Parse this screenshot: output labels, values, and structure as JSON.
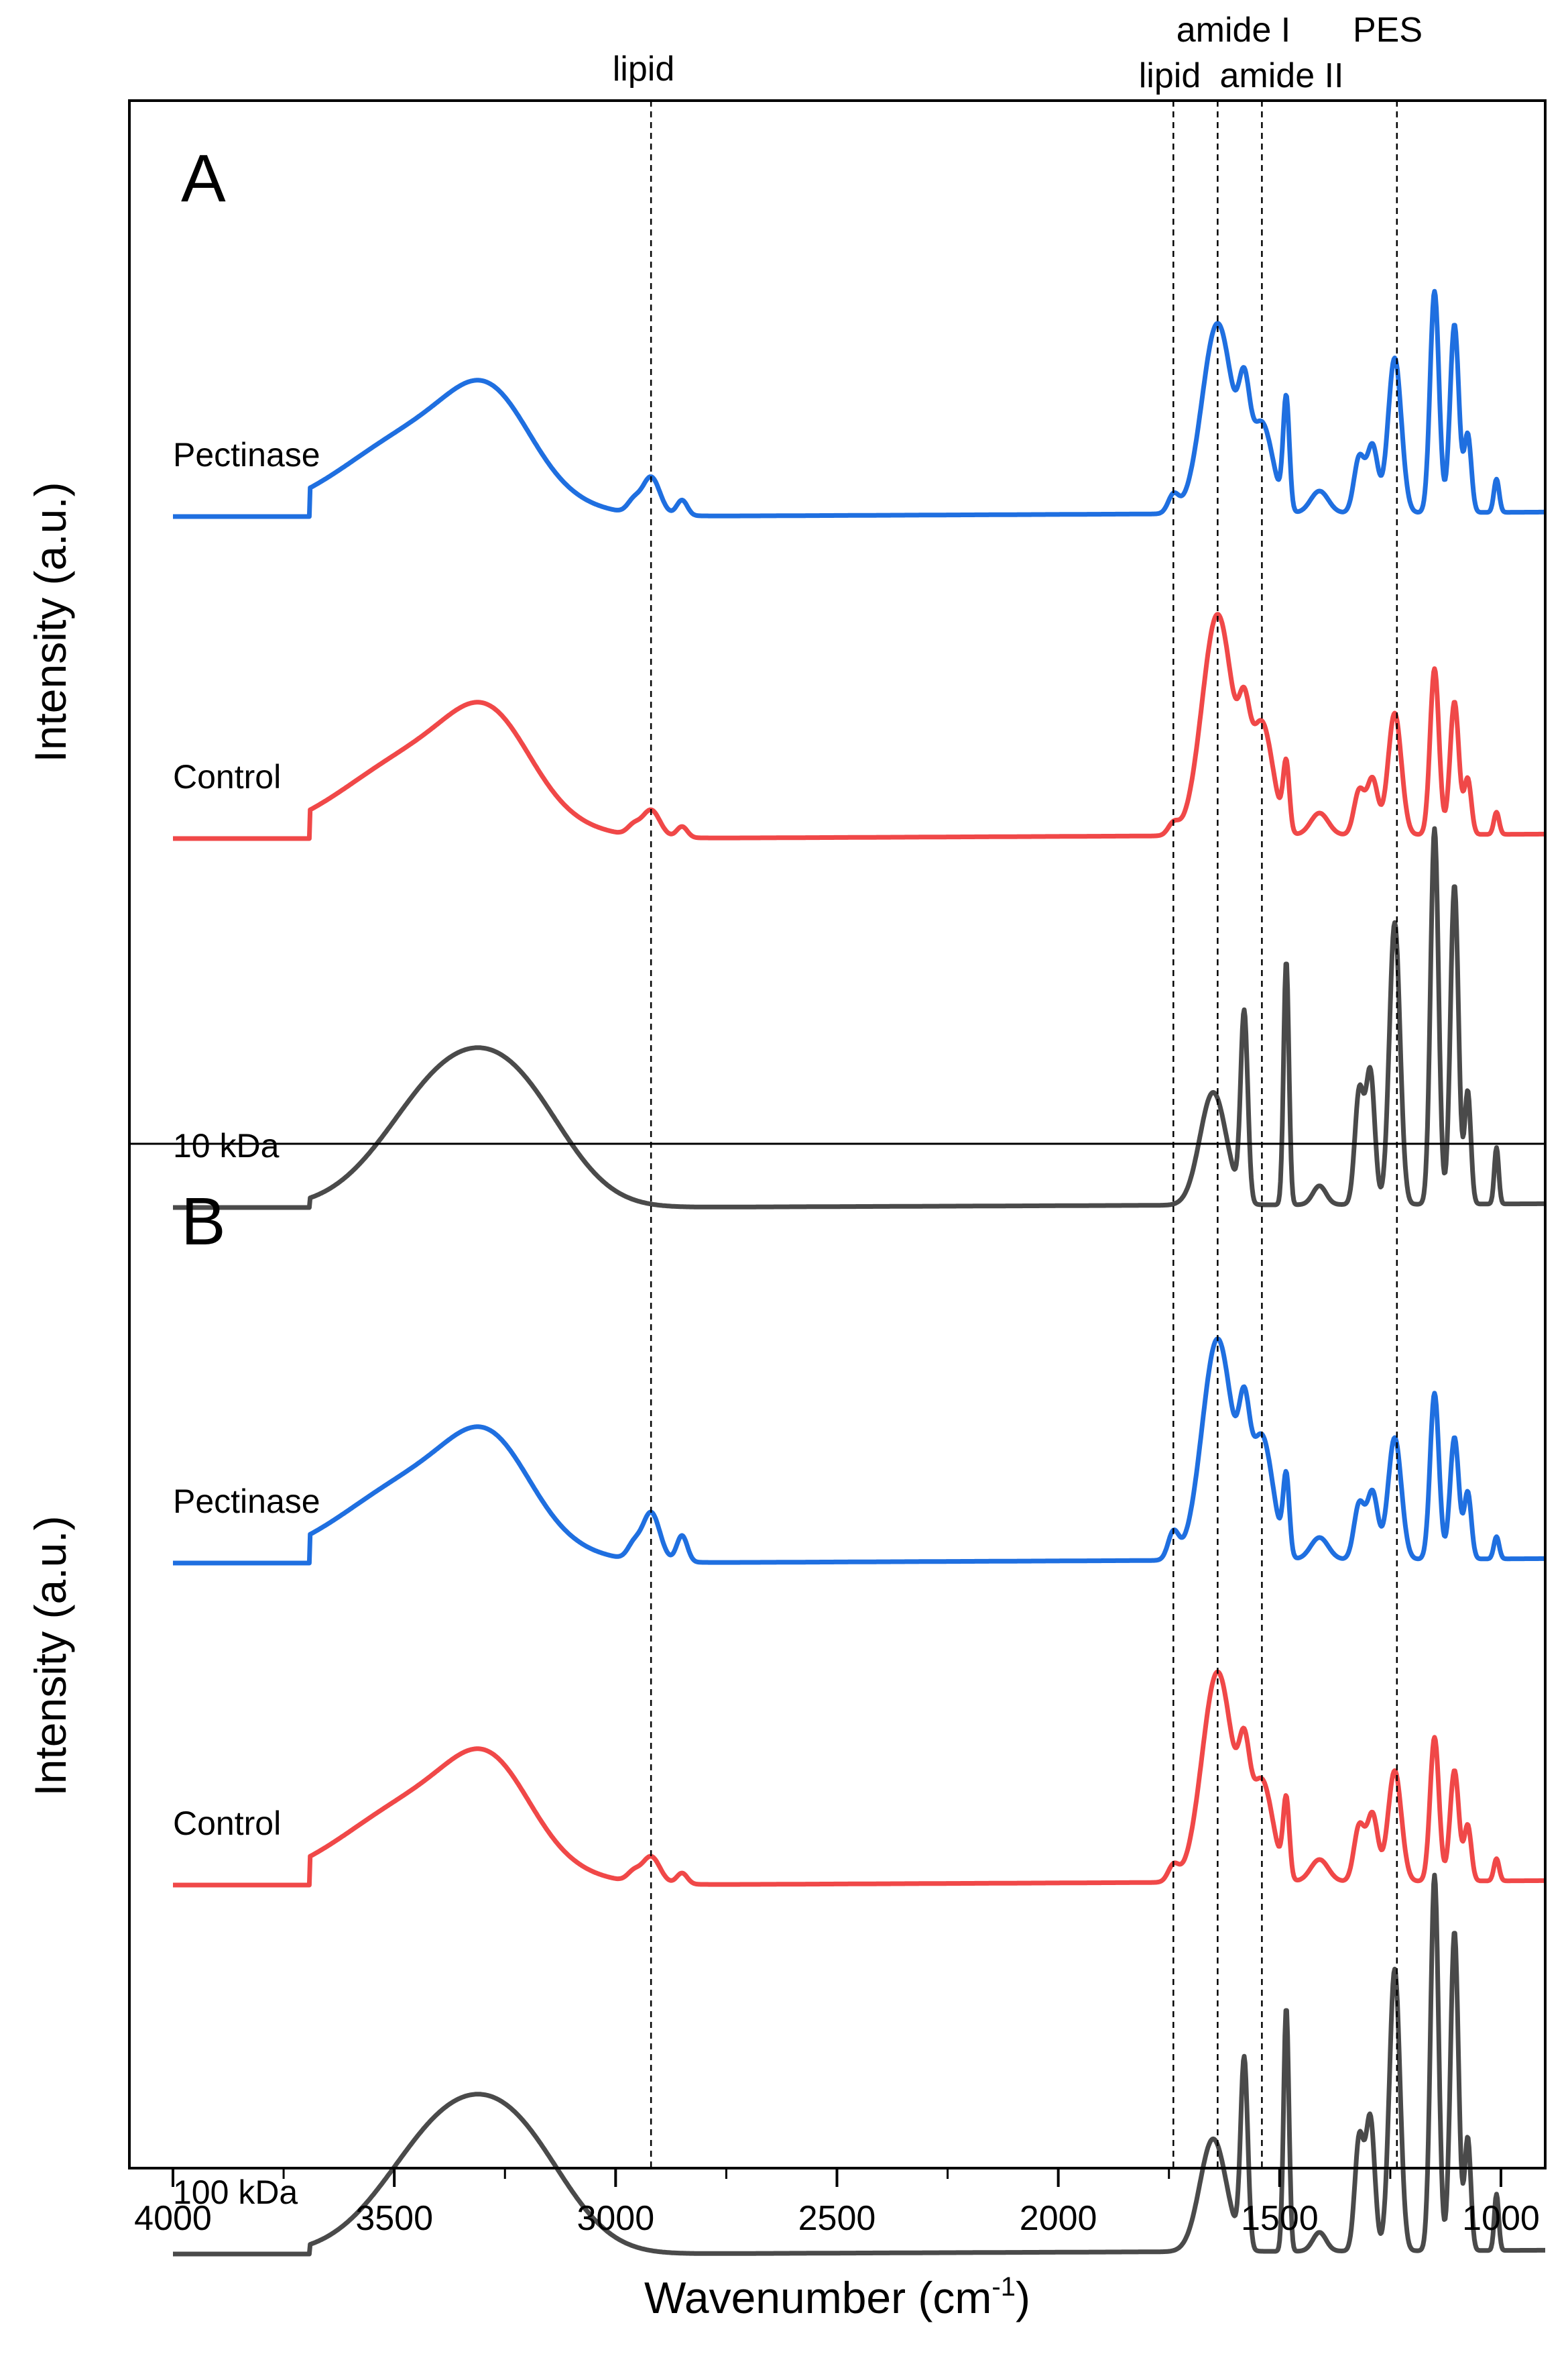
{
  "chart_data": {
    "type": "line",
    "xlabel": "Wavenumber (cm",
    "xlabel_superscript": "-1",
    "xlabel_suffix": ")",
    "xlim": [
      4000,
      900
    ],
    "x_reversed": true,
    "x_ticks": [
      "4000",
      "3500",
      "3000",
      "2500",
      "2000",
      "1500",
      "1000"
    ],
    "ylabel": "Intensity (a.u.)",
    "peak_markers": [
      {
        "label": "lipid",
        "x": 2920
      },
      {
        "label": "lipid",
        "x": 1740
      },
      {
        "label": "amide I",
        "x": 1640
      },
      {
        "label": "amide II",
        "x": 1540
      },
      {
        "label": "PES",
        "x": 1235
      }
    ],
    "colors": {
      "Pectinase": "#1f6fe0",
      "Control": "#f04848",
      "membrane": "#4a4a4a"
    },
    "panels": [
      {
        "id": "A",
        "series": [
          {
            "name": "Pectinase",
            "color_key": "Pectinase",
            "offset": 2.0,
            "peaks": [
              [
                3280,
                90,
                0.3
              ],
              [
                3420,
                180,
                0.4
              ],
              [
                2920,
                20,
                0.17
              ],
              [
                2850,
                12,
                0.07
              ],
              [
                2960,
                14,
                0.05
              ],
              [
                1740,
                12,
                0.08
              ],
              [
                1640,
                35,
                0.86
              ],
              [
                1580,
                12,
                0.35
              ],
              [
                1540,
                25,
                0.4
              ],
              [
                1485,
                7,
                0.5
              ],
              [
                1410,
                20,
                0.1
              ],
              [
                1320,
                12,
                0.25
              ],
              [
                1290,
                12,
                0.3
              ],
              [
                1240,
                15,
                0.7
              ],
              [
                1150,
                10,
                1.0
              ],
              [
                1105,
                10,
                0.85
              ],
              [
                1075,
                8,
                0.35
              ],
              [
                1010,
                6,
                0.15
              ]
            ]
          },
          {
            "name": "Control",
            "color_key": "Control",
            "offset": 1.0,
            "peaks": [
              [
                3280,
                90,
                0.3
              ],
              [
                3420,
                180,
                0.4
              ],
              [
                2920,
                20,
                0.12
              ],
              [
                2850,
                12,
                0.05
              ],
              [
                2960,
                14,
                0.04
              ],
              [
                1740,
                12,
                0.05
              ],
              [
                1640,
                35,
                1.0
              ],
              [
                1580,
                12,
                0.3
              ],
              [
                1540,
                25,
                0.5
              ],
              [
                1485,
                7,
                0.3
              ],
              [
                1410,
                20,
                0.1
              ],
              [
                1320,
                12,
                0.2
              ],
              [
                1290,
                12,
                0.25
              ],
              [
                1240,
                15,
                0.55
              ],
              [
                1150,
                10,
                0.75
              ],
              [
                1105,
                10,
                0.6
              ],
              [
                1075,
                8,
                0.25
              ],
              [
                1010,
                6,
                0.1
              ]
            ]
          },
          {
            "name": "10 kDa",
            "color_key": "membrane",
            "offset": 0.0,
            "peaks": [
              [
                3370,
                140,
                0.7
              ],
              [
                3200,
                110,
                0.35
              ],
              [
                1650,
                30,
                0.6
              ],
              [
                1580,
                8,
                1.0
              ],
              [
                1485,
                6,
                1.3
              ],
              [
                1410,
                15,
                0.1
              ],
              [
                1320,
                10,
                0.6
              ],
              [
                1295,
                10,
                0.7
              ],
              [
                1240,
                12,
                1.5
              ],
              [
                1150,
                9,
                2.0
              ],
              [
                1105,
                9,
                1.7
              ],
              [
                1075,
                7,
                0.6
              ],
              [
                1010,
                5,
                0.3
              ]
            ]
          }
        ]
      },
      {
        "id": "B",
        "series": [
          {
            "name": "Pectinase",
            "color_key": "Pectinase",
            "offset": 2.0,
            "peaks": [
              [
                3280,
                90,
                0.3
              ],
              [
                3420,
                180,
                0.4
              ],
              [
                2920,
                20,
                0.22
              ],
              [
                2850,
                12,
                0.12
              ],
              [
                2960,
                14,
                0.06
              ],
              [
                1740,
                12,
                0.12
              ],
              [
                1640,
                35,
                1.0
              ],
              [
                1580,
                12,
                0.4
              ],
              [
                1540,
                25,
                0.55
              ],
              [
                1485,
                7,
                0.35
              ],
              [
                1410,
                20,
                0.1
              ],
              [
                1320,
                12,
                0.25
              ],
              [
                1290,
                12,
                0.3
              ],
              [
                1240,
                15,
                0.55
              ],
              [
                1150,
                10,
                0.75
              ],
              [
                1105,
                10,
                0.55
              ],
              [
                1075,
                8,
                0.3
              ],
              [
                1010,
                6,
                0.1
              ]
            ]
          },
          {
            "name": "Control",
            "color_key": "Control",
            "offset": 1.0,
            "peaks": [
              [
                3280,
                90,
                0.3
              ],
              [
                3420,
                180,
                0.4
              ],
              [
                2920,
                20,
                0.12
              ],
              [
                2850,
                12,
                0.05
              ],
              [
                2960,
                14,
                0.04
              ],
              [
                1740,
                12,
                0.07
              ],
              [
                1640,
                35,
                0.95
              ],
              [
                1580,
                12,
                0.35
              ],
              [
                1540,
                25,
                0.45
              ],
              [
                1485,
                7,
                0.35
              ],
              [
                1410,
                20,
                0.1
              ],
              [
                1320,
                12,
                0.25
              ],
              [
                1290,
                12,
                0.3
              ],
              [
                1240,
                15,
                0.5
              ],
              [
                1150,
                10,
                0.65
              ],
              [
                1105,
                10,
                0.5
              ],
              [
                1075,
                8,
                0.25
              ],
              [
                1010,
                6,
                0.1
              ]
            ]
          },
          {
            "name": "100 kDa",
            "color_key": "membrane",
            "offset": 0.0,
            "peaks": [
              [
                3370,
                140,
                0.7
              ],
              [
                3200,
                110,
                0.35
              ],
              [
                1650,
                30,
                0.6
              ],
              [
                1580,
                8,
                1.0
              ],
              [
                1485,
                6,
                1.3
              ],
              [
                1410,
                15,
                0.1
              ],
              [
                1320,
                10,
                0.6
              ],
              [
                1295,
                10,
                0.7
              ],
              [
                1240,
                12,
                1.5
              ],
              [
                1150,
                9,
                2.0
              ],
              [
                1105,
                9,
                1.7
              ],
              [
                1075,
                7,
                0.6
              ],
              [
                1010,
                5,
                0.3
              ]
            ]
          }
        ]
      }
    ]
  }
}
